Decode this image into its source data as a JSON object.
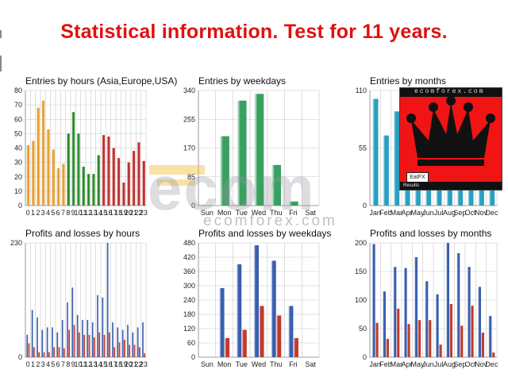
{
  "page": {
    "title": "Statistical information. Test for 11 years.",
    "watermark_main": "ecom",
    "watermark_url": "ecomforex.com",
    "popup_url": "ecomforex.com",
    "popup_badge": "EatFX",
    "popup_bottom_text": "Results"
  },
  "colors": {
    "title": "#e01010",
    "asia": "#e8a030",
    "europe": "#2e8b2e",
    "usa": "#c03030",
    "weekday": "#3aa060",
    "month": "#2aa0c0",
    "profit": "#3a5fb0",
    "loss": "#c03a2a",
    "grid": "#c8c8c8"
  },
  "chart_data": [
    {
      "id": "hours",
      "type": "bar",
      "title": "Entries by hours (Asia,Europe,USA)",
      "categories": [
        "0",
        "1",
        "2",
        "3",
        "4",
        "5",
        "6",
        "7",
        "8",
        "9",
        "10",
        "11",
        "12",
        "13",
        "14",
        "15",
        "16",
        "17",
        "18",
        "19",
        "20",
        "21",
        "22",
        "23"
      ],
      "x_tick_labels": [
        "0",
        "1",
        "2",
        "3",
        "4",
        "5",
        "6",
        "7",
        "8",
        "9",
        "10",
        "11",
        "12",
        "13",
        "14",
        "15",
        "16",
        "17",
        "18",
        "19",
        "20",
        "21",
        "22",
        "23"
      ],
      "values": [
        42,
        45,
        68,
        73,
        53,
        39,
        26,
        29,
        50,
        65,
        50,
        27,
        22,
        22,
        35,
        49,
        48,
        40,
        33,
        16,
        30,
        38,
        44,
        31
      ],
      "session_colors": [
        "asia",
        "asia",
        "asia",
        "asia",
        "asia",
        "asia",
        "asia",
        "asia",
        "europe",
        "europe",
        "europe",
        "europe",
        "europe",
        "europe",
        "europe",
        "usa",
        "usa",
        "usa",
        "usa",
        "usa",
        "usa",
        "usa",
        "usa",
        "usa"
      ],
      "ylim": [
        0,
        80
      ],
      "yticks": [
        0,
        10,
        20,
        30,
        40,
        50,
        60,
        70,
        80
      ],
      "grid": true
    },
    {
      "id": "weekdays",
      "type": "bar",
      "title": "Entries by weekdays",
      "categories": [
        "Sun",
        "Mon",
        "Tue",
        "Wed",
        "Thu",
        "Fri",
        "Sat"
      ],
      "values": [
        0,
        205,
        310,
        330,
        120,
        12,
        0
      ],
      "ylim": [
        0,
        340
      ],
      "yticks": [
        0,
        85,
        170,
        255,
        340
      ],
      "grid": true
    },
    {
      "id": "months",
      "type": "bar",
      "title": "Entries by months",
      "categories": [
        "Jan",
        "Feb",
        "Mar",
        "Apr",
        "May",
        "Jun",
        "Jul",
        "Aug",
        "Sep",
        "Oct",
        "Nov",
        "Dec"
      ],
      "values": [
        102,
        67,
        90,
        78,
        88,
        85,
        80,
        92,
        82,
        80,
        70,
        55
      ],
      "ylim": [
        0,
        110
      ],
      "yticks": [
        0,
        55,
        110
      ],
      "grid": true
    },
    {
      "id": "pl-hours",
      "type": "bar",
      "title": "Profits and losses by hours",
      "categories": [
        "0",
        "1",
        "2",
        "3",
        "4",
        "5",
        "6",
        "7",
        "8",
        "9",
        "10",
        "11",
        "12",
        "13",
        "14",
        "15",
        "16",
        "17",
        "18",
        "19",
        "20",
        "21",
        "22",
        "23"
      ],
      "x_tick_labels": [
        "0",
        "1",
        "2",
        "3",
        "4",
        "5",
        "6",
        "7",
        "8",
        "9",
        "10",
        "11",
        "12",
        "13",
        "14",
        "15",
        "16",
        "17",
        "18",
        "19",
        "20",
        "21",
        "22",
        "23"
      ],
      "series": [
        {
          "name": "Profits",
          "values": [
            45,
            95,
            80,
            55,
            60,
            60,
            50,
            75,
            110,
            140,
            85,
            75,
            75,
            70,
            125,
            120,
            230,
            70,
            60,
            55,
            65,
            50,
            60,
            70
          ]
        },
        {
          "name": "Losses",
          "values": [
            28,
            20,
            10,
            10,
            10,
            20,
            20,
            18,
            55,
            65,
            50,
            45,
            45,
            40,
            50,
            45,
            50,
            20,
            30,
            35,
            25,
            25,
            20,
            8
          ]
        }
      ],
      "ylim": [
        0,
        230
      ],
      "yticks": [
        0,
        230
      ],
      "grid": true
    },
    {
      "id": "pl-weekdays",
      "type": "bar",
      "title": "Profits and losses by weekdays",
      "categories": [
        "Sun",
        "Mon",
        "Tue",
        "Wed",
        "Thu",
        "Fri",
        "Sat"
      ],
      "series": [
        {
          "name": "Profits",
          "values": [
            0,
            290,
            390,
            470,
            405,
            215,
            0
          ]
        },
        {
          "name": "Losses",
          "values": [
            0,
            80,
            115,
            215,
            175,
            80,
            0
          ]
        }
      ],
      "ylim": [
        0,
        480
      ],
      "yticks": [
        0,
        60,
        120,
        180,
        240,
        300,
        360,
        420,
        480
      ],
      "grid": true
    },
    {
      "id": "pl-months",
      "type": "bar",
      "title": "Profits and losses by months",
      "categories": [
        "Jan",
        "Feb",
        "Mar",
        "Apr",
        "May",
        "Jun",
        "Jul",
        "Aug",
        "Sep",
        "Oct",
        "Nov",
        "Dec"
      ],
      "series": [
        {
          "name": "Profits",
          "values": [
            198,
            115,
            158,
            156,
            175,
            133,
            110,
            200,
            182,
            158,
            123,
            72
          ]
        },
        {
          "name": "Losses",
          "values": [
            60,
            32,
            85,
            58,
            65,
            65,
            22,
            93,
            55,
            90,
            43,
            8
          ]
        }
      ],
      "ylim": [
        0,
        200
      ],
      "yticks": [
        0,
        50,
        100,
        150,
        200
      ],
      "grid": true
    }
  ]
}
